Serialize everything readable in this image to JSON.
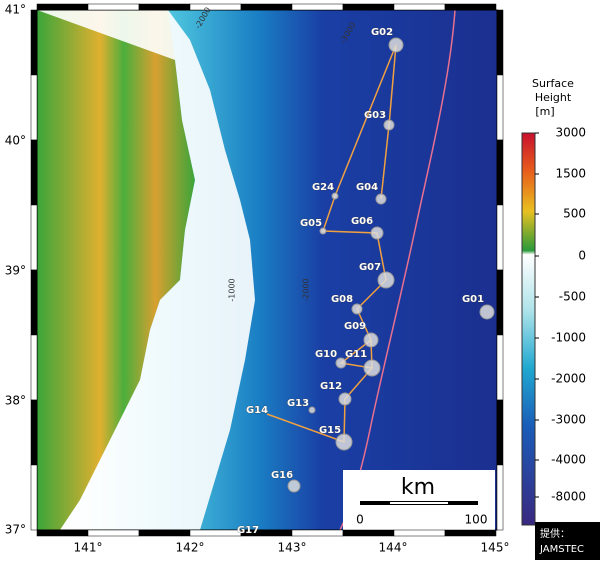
{
  "axes": {
    "lat_labels": [
      "41°",
      "40°",
      "39°",
      "38°",
      "37°"
    ],
    "lon_labels": [
      "141°",
      "142°",
      "143°",
      "144°",
      "145°"
    ]
  },
  "contour_labels": [
    "-2000",
    "-3000",
    "-1000",
    "-2000"
  ],
  "stations": [
    {
      "label": "G01"
    },
    {
      "label": "G02"
    },
    {
      "label": "G03"
    },
    {
      "label": "G04"
    },
    {
      "label": "G05"
    },
    {
      "label": "G06"
    },
    {
      "label": "G07"
    },
    {
      "label": "G08"
    },
    {
      "label": "G09"
    },
    {
      "label": "G10"
    },
    {
      "label": "G11"
    },
    {
      "label": "G12"
    },
    {
      "label": "G13"
    },
    {
      "label": "G14"
    },
    {
      "label": "G15"
    },
    {
      "label": "G16"
    },
    {
      "label": "G17"
    },
    {
      "label": "G24"
    }
  ],
  "colorbar": {
    "title": [
      "Surface",
      "Height",
      "[m]"
    ],
    "labels": [
      "3000",
      "1500",
      "500",
      "0",
      "-500",
      "-1000",
      "-2000",
      "-3000",
      "-4000",
      "-8000"
    ]
  },
  "scale_bar": {
    "unit": "km",
    "labels": [
      "0",
      "100"
    ]
  },
  "credit": [
    "提供：",
    "JAMSTEC"
  ]
}
